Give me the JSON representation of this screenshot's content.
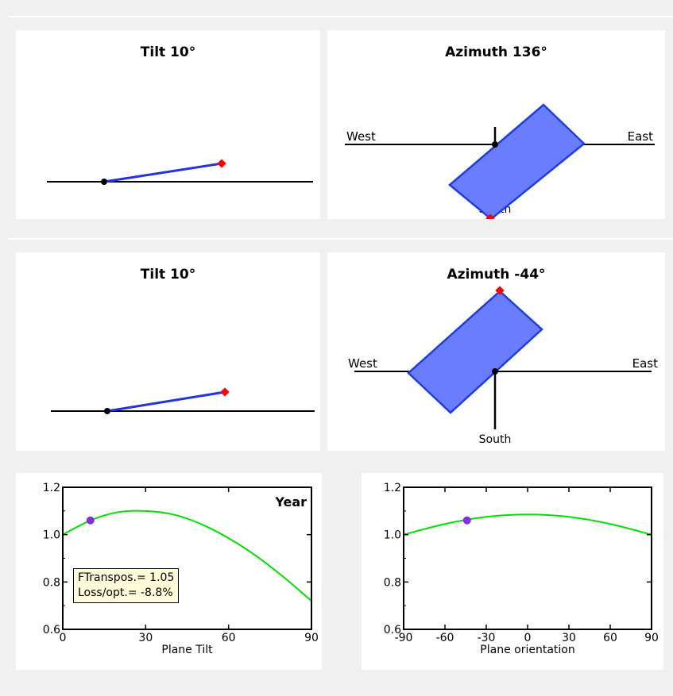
{
  "section1": {
    "tilt_title": "Tilt 10°",
    "azimuth_title": "Azimuth 136°",
    "west_label": "West",
    "east_label": "East",
    "south_label": "South",
    "tilt_deg": 10,
    "azimuth_deg": 136
  },
  "section2": {
    "tilt_title": "Tilt 10°",
    "azimuth_title": "Azimuth -44°",
    "west_label": "West",
    "east_label": "East",
    "south_label": "South",
    "tilt_deg": 10,
    "azimuth_deg": -44
  },
  "colors": {
    "plane_fill": "#6b7dff",
    "plane_stroke": "#1e3ce0",
    "tilt_line": "#2233dd",
    "marker_red": "#ff0000",
    "curve_green": "#00e000",
    "marker_purple": "#8a2be2",
    "infobox_bg": "#fffbd9"
  },
  "chart_data": [
    {
      "type": "line",
      "title": "",
      "period_label": "Year",
      "xlabel": "Plane Tilt",
      "ylabel": "",
      "xlim": [
        0,
        90
      ],
      "ylim": [
        0.6,
        1.2
      ],
      "x_ticks": [
        "0",
        "30",
        "60",
        "90"
      ],
      "y_ticks": [
        "0.6",
        "0.8",
        "1.0",
        "1.2"
      ],
      "x": [
        0,
        10,
        20,
        30,
        40,
        50,
        60,
        70,
        80,
        90
      ],
      "values": [
        1.0,
        1.06,
        1.095,
        1.1,
        1.085,
        1.045,
        0.985,
        0.91,
        0.82,
        0.72
      ],
      "marker": {
        "x": 10,
        "y": 1.06
      },
      "info": {
        "ftranspos": "FTranspos.= 1.05",
        "loss": "Loss/opt.= -8.8%"
      }
    },
    {
      "type": "line",
      "title": "",
      "xlabel": "Plane orientation",
      "ylabel": "",
      "xlim": [
        -90,
        90
      ],
      "ylim": [
        0.6,
        1.2
      ],
      "x_ticks": [
        "-90",
        "-60",
        "-30",
        "0",
        "30",
        "60",
        "90"
      ],
      "y_ticks": [
        "0.6",
        "0.8",
        "1.0",
        "1.2"
      ],
      "x": [
        -90,
        -60,
        -30,
        0,
        30,
        60,
        90
      ],
      "values": [
        1.0,
        1.045,
        1.075,
        1.085,
        1.075,
        1.045,
        1.0
      ],
      "marker": {
        "x": -44,
        "y": 1.06
      }
    }
  ]
}
